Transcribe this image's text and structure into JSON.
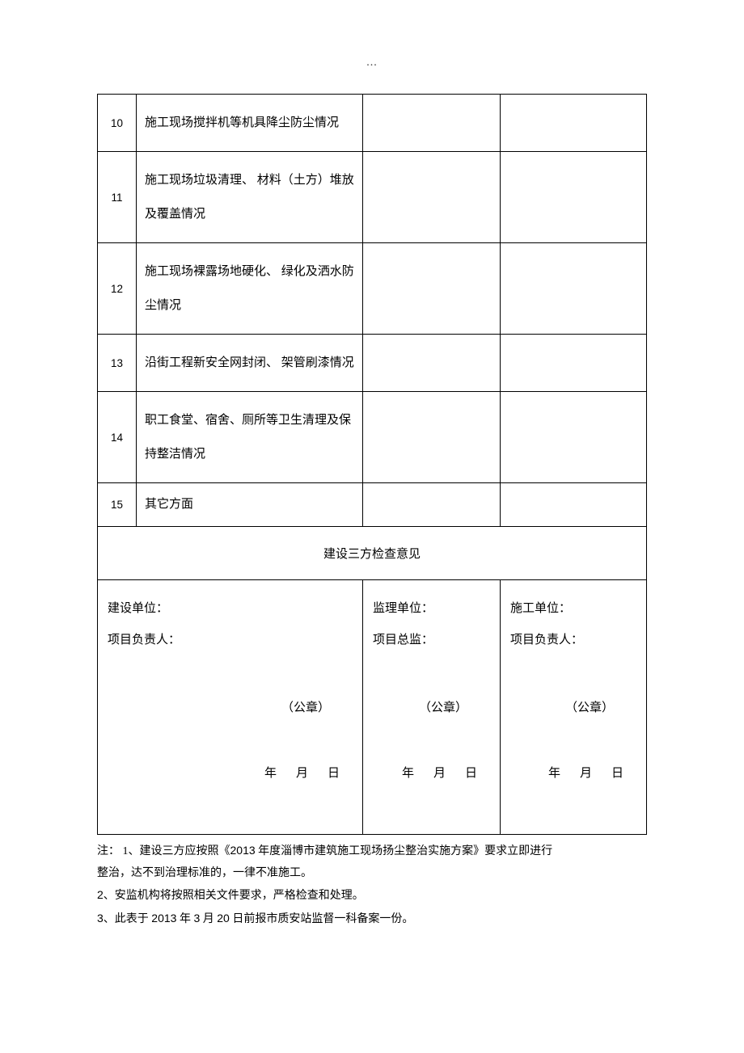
{
  "header_dots": "...",
  "rows": [
    {
      "num": "10",
      "desc": "施工现场搅拌机等机具降尘防尘情况"
    },
    {
      "num": "11",
      "desc": "施工现场垃圾清理、 材料（土方）堆放及覆盖情况"
    },
    {
      "num": "12",
      "desc": "施工现场裸露场地硬化、 绿化及洒水防尘情况"
    },
    {
      "num": "13",
      "desc": "沿街工程新安全网封闭、 架管刷漆情况"
    },
    {
      "num": "14",
      "desc": "职工食堂、宿舍、厕所等卫生清理及保持整洁情况"
    },
    {
      "num": "15",
      "desc": "其它方面"
    }
  ],
  "section_title": "建设三方检查意见",
  "sig_cols": [
    {
      "unit_label": "建设单位：",
      "person_label": "项目负责人："
    },
    {
      "unit_label": "监理单位：",
      "person_label": "项目总监："
    },
    {
      "unit_label": "施工单位：",
      "person_label": "项目负责人："
    }
  ],
  "stamp_text": "（公章）",
  "date_parts": {
    "y": "年",
    "m": "月",
    "d": "日"
  },
  "notes": {
    "line1_a": "注： 1、建设三方应按照《",
    "line1_b": "2013",
    "line1_c": " 年度淄博市建筑施工现场扬尘整治实施方案》要求立即进行",
    "line2": "整治，达不到治理标准的，一律不准施工。",
    "line3_a": "2",
    "line3_b": "、安监机构将按照相关文件要求，严格检查和处理。",
    "line4_a": "3",
    "line4_b": "、此表于 ",
    "line4_c": "2013",
    "line4_d": " 年 ",
    "line4_e": "3",
    "line4_f": " 月 ",
    "line4_g": "20",
    "line4_h": " 日前报市质安站监督一科备案一份。"
  }
}
